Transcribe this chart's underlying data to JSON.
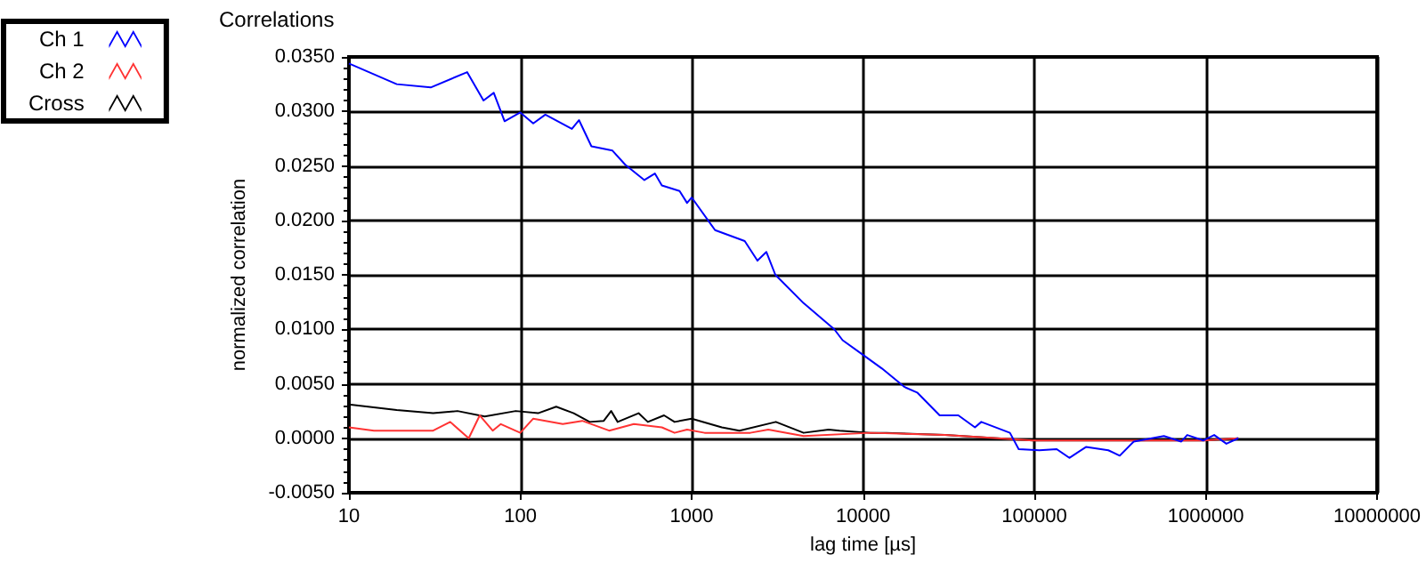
{
  "chart_data": {
    "type": "line",
    "title": "Correlations",
    "xlabel": "lag time [µs]",
    "ylabel": "normalized correlation",
    "log": "x",
    "grid": true,
    "legend": "top left",
    "marker": "none",
    "line_style": "solid",
    "xlim": [
      10,
      10000000
    ],
    "xticks": [
      10,
      100,
      1000,
      10000,
      100000,
      1000000,
      10000000
    ],
    "ylim": [
      -0.005,
      0.035
    ],
    "yticks": [
      {
        "value": -0.005,
        "label": "-0.0050"
      },
      {
        "value": 0,
        "label": "0.0000"
      },
      {
        "value": 0.005,
        "label": "0.0050"
      },
      {
        "value": 0.01,
        "label": "0.0100"
      },
      {
        "value": 0.015,
        "label": "0.0150"
      },
      {
        "value": 0.02,
        "label": "0.0200"
      },
      {
        "value": 0.025,
        "label": "0.0250"
      },
      {
        "value": 0.03,
        "label": "0.0300"
      },
      {
        "value": 0.035,
        "label": "0.0350"
      }
    ],
    "series": [
      {
        "name": "Ch 1",
        "color": "#0000ff",
        "x": [
          10,
          19,
          30,
          49,
          61,
          70,
          81,
          100,
          119,
          140,
          200,
          220,
          260,
          345,
          410,
          530,
          610,
          670,
          850,
          940,
          1000,
          1370,
          2040,
          2420,
          2730,
          3080,
          4500,
          6800,
          7600,
          9900,
          12900,
          17500,
          20700,
          28000,
          36000,
          45000,
          49000,
          72000,
          81000,
          107000,
          135000,
          160000,
          200000,
          270000,
          315000,
          380000,
          570000,
          720000,
          780000,
          970000,
          1120000,
          1320000,
          1550000
        ],
        "values": [
          0.0344,
          0.0325,
          0.0322,
          0.0336,
          0.031,
          0.0317,
          0.0291,
          0.0299,
          0.0289,
          0.0297,
          0.0284,
          0.0292,
          0.0268,
          0.0264,
          0.0251,
          0.0237,
          0.0243,
          0.0232,
          0.0227,
          0.0216,
          0.0221,
          0.0191,
          0.0181,
          0.0163,
          0.0171,
          0.015,
          0.0124,
          0.01,
          0.009,
          0.0077,
          0.0064,
          0.0047,
          0.0042,
          0.0021,
          0.0021,
          0.001,
          0.0015,
          0.0005,
          -0.001,
          -0.0011,
          -0.001,
          -0.0018,
          -0.0008,
          -0.0011,
          -0.0016,
          -0.0003,
          0.0002,
          -0.0003,
          0.0003,
          -0.0002,
          0.0003,
          -0.0005,
          0.0
        ]
      },
      {
        "name": "Ch 2",
        "color": "#ff3333",
        "x": [
          10,
          14,
          31,
          39,
          50,
          58,
          69,
          77,
          100,
          119,
          177,
          230,
          330,
          460,
          670,
          795,
          940,
          1190,
          2200,
          2800,
          4500,
          11000,
          30000,
          98000,
          325000,
          970000,
          1550000
        ],
        "values": [
          0.001,
          0.0007,
          0.0007,
          0.0015,
          0.0,
          0.0021,
          0.0007,
          0.0013,
          0.0005,
          0.0018,
          0.0013,
          0.0016,
          0.0007,
          0.0013,
          0.001,
          0.0005,
          0.0008,
          0.0005,
          0.0005,
          0.0008,
          0.0002,
          0.0005,
          0.0003,
          -0.0002,
          -0.0002,
          -0.0002,
          0.0
        ]
      },
      {
        "name": "Cross",
        "color": "#000000",
        "x": [
          10,
          19,
          31,
          43,
          62,
          94,
          127,
          162,
          205,
          254,
          307,
          339,
          370,
          490,
          555,
          690,
          795,
          1000,
          1500,
          1900,
          3100,
          4500,
          6300,
          7300,
          11000,
          13700,
          30000,
          98000,
          325000,
          970000,
          1550000
        ],
        "values": [
          0.0031,
          0.0026,
          0.0023,
          0.0025,
          0.002,
          0.0025,
          0.0023,
          0.0029,
          0.0023,
          0.0015,
          0.0016,
          0.0025,
          0.0015,
          0.0023,
          0.0015,
          0.0021,
          0.0015,
          0.0018,
          0.001,
          0.0007,
          0.0015,
          0.0005,
          0.0008,
          0.0007,
          0.0005,
          0.0005,
          0.0003,
          -0.0002,
          -0.0002,
          -0.0002,
          0.0
        ]
      }
    ]
  }
}
